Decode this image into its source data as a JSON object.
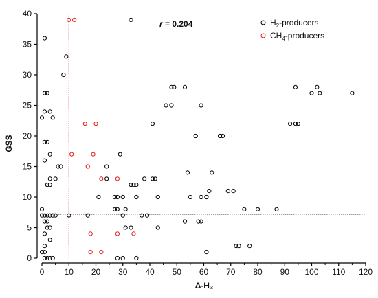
{
  "chart_data": {
    "type": "scatter",
    "xlabel": "Δ-H₂",
    "ylabel": "GSS",
    "xlim": [
      0,
      120
    ],
    "ylim": [
      0,
      40
    ],
    "x_ticks": [
      "0",
      "10",
      "20",
      "30",
      "40",
      "50",
      "60",
      "70",
      "80",
      "90",
      "100",
      "110",
      "120"
    ],
    "y_ticks": [
      "0",
      "5",
      "10",
      "15",
      "20",
      "25",
      "30",
      "35",
      "40"
    ],
    "grid": false,
    "legend_position": "top-right",
    "annotation": {
      "r_label": "r",
      "r_value": " = 0.204"
    },
    "reference_lines": [
      {
        "orientation": "vertical",
        "x": 10,
        "color": "#e31a1c",
        "style": "dotted"
      },
      {
        "orientation": "vertical",
        "x": 20,
        "color": "#000000",
        "style": "dotted"
      },
      {
        "orientation": "horizontal",
        "y": 7.2,
        "color": "#000000",
        "style": "dotted"
      }
    ],
    "series": [
      {
        "name_main": "H",
        "name_sub": "2",
        "name_rest": "-producers",
        "color": "#000000",
        "points": [
          [
            1,
            36
          ],
          [
            9,
            33
          ],
          [
            8,
            30
          ],
          [
            2,
            27
          ],
          [
            1,
            27
          ],
          [
            1,
            24
          ],
          [
            3,
            24
          ],
          [
            0,
            23
          ],
          [
            4,
            23
          ],
          [
            1,
            19
          ],
          [
            2,
            19
          ],
          [
            3,
            17
          ],
          [
            1,
            16
          ],
          [
            7,
            15
          ],
          [
            6,
            15
          ],
          [
            3,
            13
          ],
          [
            5,
            13
          ],
          [
            2,
            12
          ],
          [
            3,
            12
          ],
          [
            0,
            8
          ],
          [
            1,
            7
          ],
          [
            2,
            7
          ],
          [
            3,
            7
          ],
          [
            4,
            7
          ],
          [
            5,
            7
          ],
          [
            0,
            7
          ],
          [
            10,
            7
          ],
          [
            1,
            6
          ],
          [
            2,
            6
          ],
          [
            2,
            5
          ],
          [
            3,
            5
          ],
          [
            1,
            4
          ],
          [
            3,
            3
          ],
          [
            1,
            2
          ],
          [
            0,
            1
          ],
          [
            1,
            1
          ],
          [
            2,
            0
          ],
          [
            3,
            0
          ],
          [
            4,
            0
          ],
          [
            1,
            0
          ],
          [
            33,
            39
          ],
          [
            29,
            17
          ],
          [
            24,
            15
          ],
          [
            35,
            10
          ],
          [
            30,
            10
          ],
          [
            31,
            8
          ],
          [
            30,
            7
          ],
          [
            28,
            8
          ],
          [
            27,
            8
          ],
          [
            28,
            10
          ],
          [
            27,
            10
          ],
          [
            33,
            12
          ],
          [
            34,
            12
          ],
          [
            35,
            12
          ],
          [
            38,
            13
          ],
          [
            41,
            13
          ],
          [
            42,
            13
          ],
          [
            41,
            22
          ],
          [
            43,
            10
          ],
          [
            43,
            5
          ],
          [
            39,
            7
          ],
          [
            37,
            7
          ],
          [
            35,
            0
          ],
          [
            31,
            5
          ],
          [
            33,
            5
          ],
          [
            30,
            0
          ],
          [
            28,
            0
          ],
          [
            17,
            7
          ],
          [
            21,
            10
          ],
          [
            24,
            13
          ],
          [
            46,
            25
          ],
          [
            48,
            25
          ],
          [
            48,
            28
          ],
          [
            49,
            28
          ],
          [
            53,
            28
          ],
          [
            57,
            20
          ],
          [
            59,
            25
          ],
          [
            54,
            14
          ],
          [
            55,
            10
          ],
          [
            53,
            6
          ],
          [
            58,
            6
          ],
          [
            59,
            6
          ],
          [
            59,
            10
          ],
          [
            61,
            10
          ],
          [
            62,
            11
          ],
          [
            63,
            14
          ],
          [
            61,
            1
          ],
          [
            66,
            20
          ],
          [
            67,
            20
          ],
          [
            69,
            11
          ],
          [
            71,
            11
          ],
          [
            72,
            2
          ],
          [
            73,
            2
          ],
          [
            77,
            2
          ],
          [
            75,
            8
          ],
          [
            80,
            8
          ],
          [
            87,
            8
          ],
          [
            92,
            22
          ],
          [
            94,
            22
          ],
          [
            95,
            22
          ],
          [
            94,
            28
          ],
          [
            100,
            27
          ],
          [
            102,
            28
          ],
          [
            103,
            27
          ],
          [
            115,
            27
          ]
        ]
      },
      {
        "name_main": "CH",
        "name_sub": "4",
        "name_rest": "-producers",
        "color": "#e31a1c",
        "points": [
          [
            10,
            39
          ],
          [
            12,
            39
          ],
          [
            16,
            22
          ],
          [
            20,
            22
          ],
          [
            19,
            17
          ],
          [
            11,
            17
          ],
          [
            17,
            15
          ],
          [
            22,
            13
          ],
          [
            28,
            13
          ],
          [
            18,
            4
          ],
          [
            28,
            4
          ],
          [
            34,
            4
          ],
          [
            18,
            1
          ],
          [
            22,
            1
          ]
        ]
      }
    ]
  }
}
